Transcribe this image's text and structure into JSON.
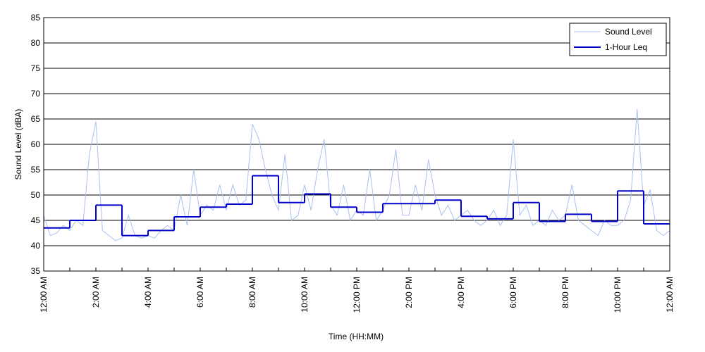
{
  "chart_data": {
    "type": "line",
    "xlabel": "Time (HH:MM)",
    "ylabel": "Sound Level (dBA)",
    "xlim": [
      0,
      24
    ],
    "ylim": [
      35,
      85
    ],
    "yticks": [
      35,
      40,
      45,
      50,
      55,
      60,
      65,
      70,
      75,
      80,
      85
    ],
    "xticks": [
      {
        "value": 0,
        "label": "12:00 AM"
      },
      {
        "value": 2,
        "label": "2:00 AM"
      },
      {
        "value": 4,
        "label": "4:00 AM"
      },
      {
        "value": 6,
        "label": "6:00 AM"
      },
      {
        "value": 8,
        "label": "8:00 AM"
      },
      {
        "value": 10,
        "label": "10:00 AM"
      },
      {
        "value": 12,
        "label": "12:00 PM"
      },
      {
        "value": 14,
        "label": "2:00 PM"
      },
      {
        "value": 16,
        "label": "4:00 PM"
      },
      {
        "value": 18,
        "label": "6:00 PM"
      },
      {
        "value": 20,
        "label": "8:00 PM"
      },
      {
        "value": 22,
        "label": "10:00 PM"
      },
      {
        "value": 24,
        "label": "12:00 AM"
      }
    ],
    "xminorticks": [
      1,
      3,
      5,
      7,
      9,
      11,
      13,
      15,
      17,
      19,
      21,
      23
    ],
    "grid": true,
    "legend": "upper right",
    "series": [
      {
        "name": "Sound Level",
        "color": "#a9c1f0",
        "x": [
          0,
          0.25,
          0.5,
          0.75,
          1,
          1.25,
          1.5,
          1.75,
          2,
          2.25,
          2.5,
          2.75,
          3,
          3.25,
          3.5,
          3.75,
          4,
          4.25,
          4.5,
          4.75,
          5,
          5.25,
          5.5,
          5.75,
          6,
          6.25,
          6.5,
          6.75,
          7,
          7.25,
          7.5,
          7.75,
          8,
          8.25,
          8.5,
          8.75,
          9,
          9.25,
          9.5,
          9.75,
          10,
          10.25,
          10.5,
          10.75,
          11,
          11.25,
          11.5,
          11.75,
          12,
          12.25,
          12.5,
          12.75,
          13,
          13.25,
          13.5,
          13.75,
          14,
          14.25,
          14.5,
          14.75,
          15,
          15.25,
          15.5,
          15.75,
          16,
          16.25,
          16.5,
          16.75,
          17,
          17.25,
          17.5,
          17.75,
          18,
          18.25,
          18.5,
          18.75,
          19,
          19.25,
          19.5,
          19.75,
          20,
          20.25,
          20.5,
          20.75,
          21,
          21.25,
          21.5,
          21.75,
          22,
          22.25,
          22.5,
          22.75,
          23,
          23.25,
          23.5,
          23.75,
          24
        ],
        "values": [
          46,
          42,
          42.5,
          44,
          43,
          45,
          44,
          58,
          64.5,
          43,
          42,
          41,
          41.5,
          46,
          42,
          41.5,
          42,
          41.5,
          43,
          44,
          43,
          50,
          44,
          55,
          46,
          48,
          47,
          52,
          47,
          52,
          48,
          49,
          64,
          61,
          55,
          50,
          47,
          58,
          45,
          46,
          52,
          47,
          55,
          61,
          48,
          46,
          52,
          45,
          47,
          46,
          55,
          45,
          47,
          50,
          59,
          46,
          46,
          52,
          47,
          57,
          50,
          46,
          48,
          45,
          46,
          47,
          45,
          44,
          45,
          47,
          44,
          46,
          61,
          46,
          48,
          44,
          45,
          44,
          47,
          45,
          46,
          52,
          45,
          44,
          43,
          42,
          45,
          44,
          44,
          45,
          49,
          67,
          48,
          51,
          43,
          42,
          43
        ]
      },
      {
        "name": "1-Hour Leq",
        "color": "#0000cc",
        "step": "post",
        "x": [
          0,
          1,
          2,
          3,
          4,
          5,
          6,
          7,
          8,
          9,
          10,
          11,
          12,
          13,
          15,
          16,
          17,
          18,
          19,
          20,
          21,
          22,
          23
        ],
        "values": [
          43.5,
          45,
          48,
          42,
          43,
          45.7,
          47.6,
          48.2,
          53.8,
          48.5,
          50.2,
          47.6,
          46.6,
          48.3,
          49,
          45.8,
          45.3,
          48.5,
          44.8,
          46.2,
          44.8,
          50.8,
          44.3
        ]
      }
    ]
  }
}
